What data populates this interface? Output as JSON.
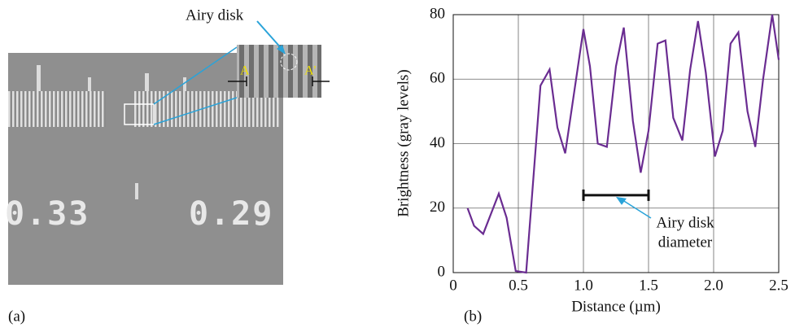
{
  "panel_a": {
    "label": "(a)",
    "inset_title": "Airy disk",
    "marker_a": "A",
    "marker_a_prime": "A'",
    "numbers": [
      "0.33",
      "0.29"
    ]
  },
  "chart_data": {
    "type": "line",
    "panel_label": "(b)",
    "x_label": "Distance (µm)",
    "y_label": "Brightness (gray levels)",
    "x": [
      0.11,
      0.16,
      0.23,
      0.35,
      0.41,
      0.48,
      0.56,
      0.67,
      0.74,
      0.8,
      0.86,
      1.0,
      1.05,
      1.11,
      1.18,
      1.25,
      1.31,
      1.38,
      1.44,
      1.5,
      1.57,
      1.63,
      1.69,
      1.76,
      1.82,
      1.88,
      1.94,
      2.01,
      2.07,
      2.13,
      2.19,
      2.26,
      2.32,
      2.38,
      2.45,
      2.5
    ],
    "series": [
      {
        "color": "#6a2c91",
        "values": [
          20,
          14.5,
          12,
          24.5,
          17,
          0.5,
          0,
          58,
          63,
          45,
          37,
          75.5,
          64,
          40,
          39,
          64,
          76,
          47,
          31,
          44,
          71,
          72,
          48,
          41,
          63,
          78,
          62,
          36,
          44,
          71,
          74.5,
          50,
          39,
          60,
          80,
          66
        ]
      }
    ],
    "xlim": [
      0,
      2.5
    ],
    "ylim": [
      0,
      80
    ],
    "xticks": [
      0,
      0.5,
      {
        "value": 1,
        "label": "1.0"
      },
      1.5,
      {
        "value": 2,
        "label": "2.0"
      },
      2.5
    ],
    "yticks": [
      0,
      20,
      40,
      60,
      80
    ],
    "grid": true,
    "scale_bar": {
      "x0": 1.0,
      "x1": 1.5,
      "y": 24
    },
    "annotation": [
      "Airy disk",
      "diameter"
    ]
  }
}
